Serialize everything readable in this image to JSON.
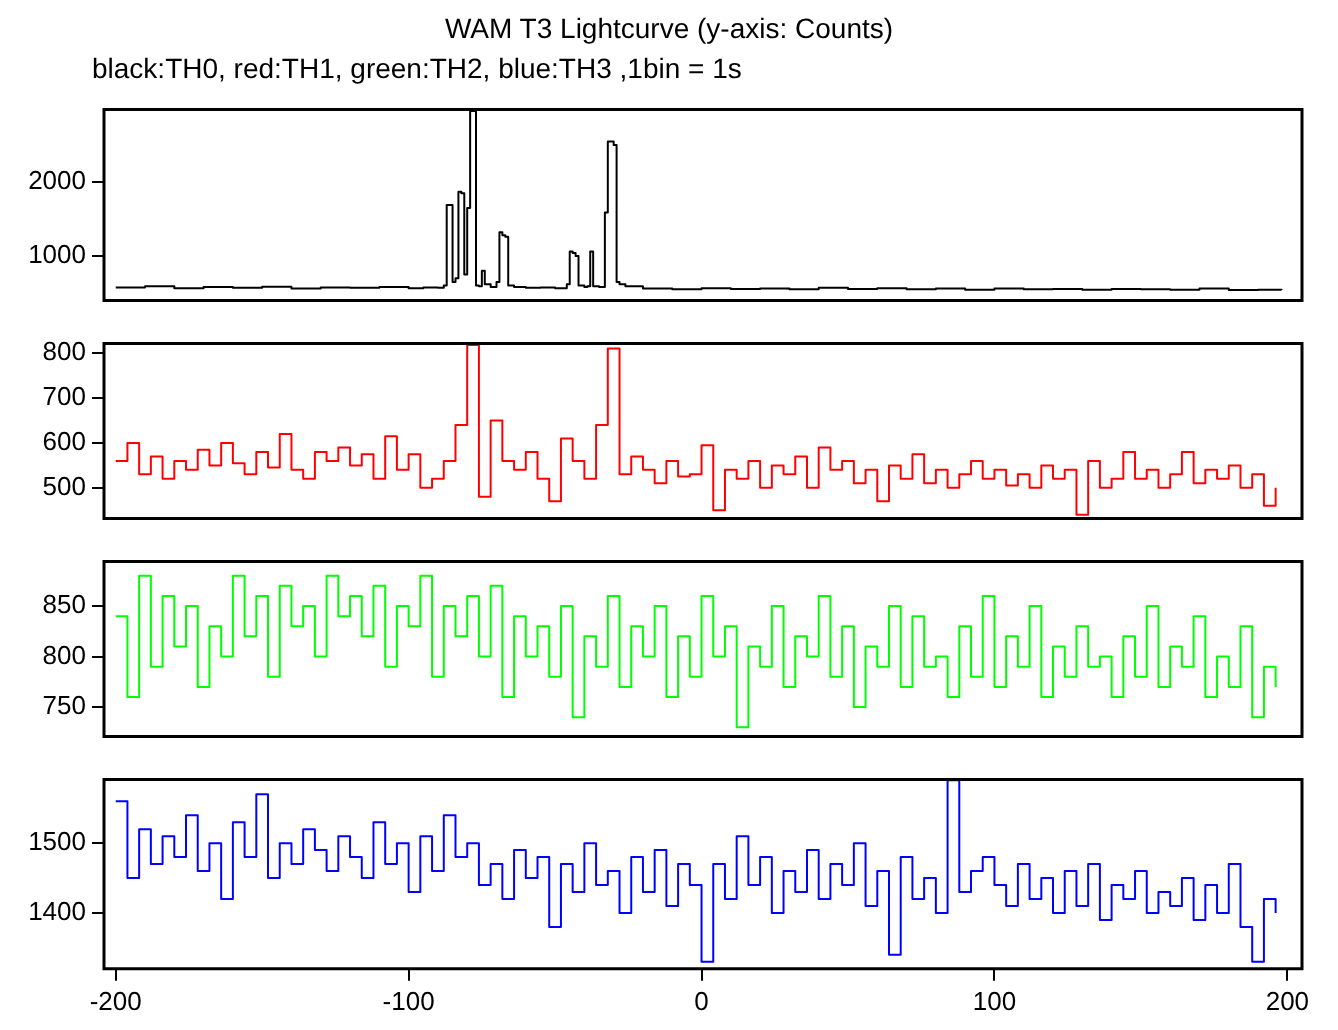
{
  "chart_data": [
    {
      "type": "step",
      "title": "WAM T3 Lightcurve (y-axis: Counts)",
      "subtitle": "black:TH0, red:TH1, green:TH2, blue:TH3 ,1bin = 1s",
      "color": "#000000",
      "x": [
        -200,
        -190,
        -180,
        -170,
        -160,
        -150,
        -140,
        -130,
        -120,
        -110,
        -100,
        -95,
        -90,
        -88,
        -87,
        -86,
        -85,
        -84,
        -83,
        -82,
        -81,
        -80,
        -79,
        -78,
        -77,
        -76,
        -75,
        -74,
        -72,
        -70,
        -69,
        -68,
        -67,
        -66,
        -64,
        -60,
        -55,
        -50,
        -46,
        -45,
        -44,
        -43,
        -42,
        -40,
        -39,
        -38,
        -37,
        -35,
        -33,
        -32,
        -31,
        -30,
        -29,
        -28,
        -26,
        -20,
        -10,
        0,
        10,
        20,
        30,
        40,
        50,
        60,
        70,
        80,
        90,
        100,
        110,
        120,
        130,
        140,
        150,
        160,
        170,
        180,
        190,
        198
      ],
      "values": [
        575,
        590,
        565,
        580,
        570,
        585,
        560,
        575,
        570,
        580,
        565,
        575,
        570,
        600,
        1690,
        1690,
        650,
        700,
        1870,
        1850,
        750,
        1650,
        2960,
        2960,
        600,
        590,
        800,
        620,
        580,
        650,
        1320,
        1280,
        1260,
        600,
        580,
        570,
        575,
        565,
        620,
        1060,
        1040,
        1000,
        600,
        580,
        590,
        1060,
        590,
        580,
        1590,
        2550,
        2550,
        2500,
        650,
        620,
        590,
        560,
        550,
        565,
        555,
        560,
        550,
        570,
        555,
        565,
        550,
        560,
        545,
        560,
        550,
        555,
        545,
        555,
        550,
        545,
        560,
        540,
        545,
        540
      ],
      "xlim": [
        -204,
        205
      ],
      "xticks": [
        -200,
        -100,
        0,
        100,
        200
      ],
      "ylim": [
        400,
        2980
      ],
      "yticks": [
        1000,
        2000
      ],
      "tick_labels": "y"
    },
    {
      "type": "step",
      "color": "#ff0000",
      "x": [
        -200,
        -196,
        -192,
        -188,
        -184,
        -180,
        -176,
        -172,
        -168,
        -164,
        -160,
        -156,
        -152,
        -148,
        -144,
        -140,
        -136,
        -132,
        -128,
        -124,
        -120,
        -116,
        -112,
        -108,
        -104,
        -100,
        -96,
        -92,
        -88,
        -84,
        -80,
        -76,
        -72,
        -68,
        -64,
        -60,
        -56,
        -52,
        -48,
        -44,
        -40,
        -36,
        -32,
        -28,
        -24,
        -20,
        -16,
        -12,
        -8,
        -4,
        0,
        4,
        8,
        12,
        16,
        20,
        24,
        28,
        32,
        36,
        40,
        44,
        48,
        52,
        56,
        60,
        64,
        68,
        72,
        76,
        80,
        84,
        88,
        92,
        96,
        100,
        104,
        108,
        112,
        116,
        120,
        124,
        128,
        132,
        136,
        140,
        144,
        148,
        152,
        156,
        160,
        164,
        168,
        172,
        176,
        180,
        184,
        188,
        192,
        196
      ],
      "values": [
        560,
        600,
        530,
        570,
        520,
        560,
        540,
        585,
        550,
        600,
        555,
        530,
        580,
        545,
        620,
        540,
        520,
        580,
        560,
        590,
        550,
        575,
        520,
        615,
        540,
        575,
        500,
        520,
        560,
        640,
        818,
        480,
        650,
        560,
        540,
        580,
        520,
        470,
        610,
        560,
        520,
        640,
        810,
        530,
        570,
        540,
        510,
        560,
        525,
        530,
        595,
        450,
        540,
        520,
        560,
        500,
        550,
        530,
        570,
        500,
        590,
        540,
        560,
        510,
        540,
        470,
        550,
        520,
        575,
        510,
        540,
        500,
        530,
        560,
        520,
        540,
        505,
        530,
        500,
        550,
        520,
        540,
        440,
        560,
        500,
        520,
        580,
        520,
        540,
        500,
        530,
        580,
        510,
        540,
        520,
        550,
        500,
        530,
        460,
        500
      ],
      "xlim": [
        -204,
        205
      ],
      "xticks": [
        -200,
        -100,
        0,
        100,
        200
      ],
      "ylim": [
        432,
        821
      ],
      "yticks": [
        500,
        600,
        700,
        800
      ],
      "tick_labels": "y"
    },
    {
      "type": "step",
      "color": "#00ff00",
      "x": [
        -200,
        -196,
        -192,
        -188,
        -184,
        -180,
        -176,
        -172,
        -168,
        -164,
        -160,
        -156,
        -152,
        -148,
        -144,
        -140,
        -136,
        -132,
        -128,
        -124,
        -120,
        -116,
        -112,
        -108,
        -104,
        -100,
        -96,
        -92,
        -88,
        -84,
        -80,
        -76,
        -72,
        -68,
        -64,
        -60,
        -56,
        -52,
        -48,
        -44,
        -40,
        -36,
        -32,
        -28,
        -24,
        -20,
        -16,
        -12,
        -8,
        -4,
        0,
        4,
        8,
        12,
        16,
        20,
        24,
        28,
        32,
        36,
        40,
        44,
        48,
        52,
        56,
        60,
        64,
        68,
        72,
        76,
        80,
        84,
        88,
        92,
        96,
        100,
        104,
        108,
        112,
        116,
        120,
        124,
        128,
        132,
        136,
        140,
        144,
        148,
        152,
        156,
        160,
        164,
        168,
        172,
        176,
        180,
        184,
        188,
        192,
        196
      ],
      "values": [
        840,
        760,
        880,
        790,
        860,
        810,
        850,
        770,
        830,
        800,
        880,
        820,
        860,
        780,
        870,
        830,
        850,
        800,
        880,
        840,
        860,
        820,
        870,
        790,
        850,
        830,
        880,
        780,
        850,
        820,
        860,
        800,
        870,
        760,
        840,
        800,
        830,
        780,
        850,
        740,
        820,
        790,
        860,
        770,
        830,
        800,
        850,
        760,
        820,
        780,
        860,
        800,
        830,
        730,
        810,
        790,
        850,
        770,
        820,
        800,
        860,
        780,
        830,
        750,
        810,
        790,
        850,
        770,
        840,
        790,
        800,
        760,
        830,
        780,
        860,
        770,
        820,
        790,
        850,
        760,
        810,
        780,
        830,
        790,
        800,
        760,
        820,
        780,
        850,
        770,
        810,
        790,
        840,
        760,
        800,
        770,
        830,
        740,
        790,
        770
      ],
      "xlim": [
        -204,
        205
      ],
      "xticks": [
        -200,
        -100,
        0,
        100,
        200
      ],
      "ylim": [
        721,
        894
      ],
      "yticks": [
        750,
        800,
        850
      ],
      "tick_labels": "y"
    },
    {
      "type": "step",
      "color": "#0000ff",
      "x": [
        -200,
        -196,
        -192,
        -188,
        -184,
        -180,
        -176,
        -172,
        -168,
        -164,
        -160,
        -156,
        -152,
        -148,
        -144,
        -140,
        -136,
        -132,
        -128,
        -124,
        -120,
        -116,
        -112,
        -108,
        -104,
        -100,
        -96,
        -92,
        -88,
        -84,
        -80,
        -76,
        -72,
        -68,
        -64,
        -60,
        -56,
        -52,
        -48,
        -44,
        -40,
        -36,
        -32,
        -28,
        -24,
        -20,
        -16,
        -12,
        -8,
        -4,
        0,
        4,
        8,
        12,
        16,
        20,
        24,
        28,
        32,
        36,
        40,
        44,
        48,
        52,
        56,
        60,
        64,
        68,
        72,
        76,
        80,
        84,
        88,
        92,
        96,
        100,
        104,
        108,
        112,
        116,
        120,
        124,
        128,
        132,
        136,
        140,
        144,
        148,
        152,
        156,
        160,
        164,
        168,
        172,
        176,
        180,
        184,
        188,
        192,
        196
      ],
      "values": [
        1560,
        1450,
        1520,
        1470,
        1510,
        1480,
        1540,
        1460,
        1500,
        1420,
        1530,
        1480,
        1570,
        1450,
        1500,
        1470,
        1520,
        1490,
        1460,
        1510,
        1480,
        1450,
        1530,
        1470,
        1500,
        1430,
        1510,
        1460,
        1540,
        1480,
        1500,
        1440,
        1470,
        1420,
        1490,
        1450,
        1480,
        1380,
        1470,
        1430,
        1500,
        1440,
        1460,
        1400,
        1480,
        1430,
        1490,
        1410,
        1470,
        1440,
        1330,
        1470,
        1420,
        1510,
        1440,
        1480,
        1400,
        1460,
        1430,
        1490,
        1420,
        1470,
        1440,
        1500,
        1410,
        1460,
        1340,
        1480,
        1420,
        1450,
        1400,
        1590,
        1430,
        1460,
        1480,
        1440,
        1410,
        1470,
        1420,
        1450,
        1400,
        1460,
        1410,
        1470,
        1390,
        1440,
        1420,
        1460,
        1400,
        1430,
        1410,
        1450,
        1390,
        1440,
        1400,
        1470,
        1380,
        1330,
        1420,
        1400
      ],
      "xlim": [
        -204,
        205
      ],
      "xticks": [
        -200,
        -100,
        0,
        100,
        200
      ],
      "ylim": [
        1320,
        1591
      ],
      "yticks": [
        1400,
        1500
      ]
    }
  ]
}
